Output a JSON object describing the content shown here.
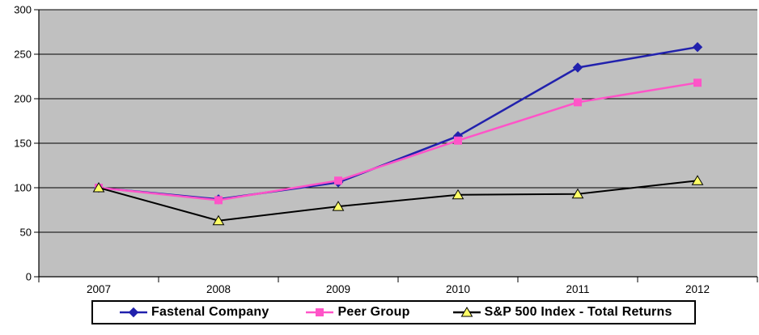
{
  "chart_data": {
    "type": "line",
    "title": "",
    "xlabel": "",
    "ylabel": "",
    "x": [
      "2007",
      "2008",
      "2009",
      "2010",
      "2011",
      "2012"
    ],
    "series": [
      {
        "name": "Fastenal Company",
        "marker": "diamond",
        "color": "#2121AD",
        "marker_fill": "#2121AD",
        "values": [
          100,
          87,
          106,
          158,
          235,
          258
        ]
      },
      {
        "name": "Peer Group",
        "marker": "square",
        "color": "#FF54C8",
        "marker_fill": "#FF54C8",
        "values": [
          100,
          86,
          108,
          153,
          196,
          218
        ]
      },
      {
        "name": "S&P 500 Index - Total Returns",
        "marker": "triangle",
        "color": "#000000",
        "marker_fill": "#FFFF66",
        "values": [
          100,
          63,
          79,
          92,
          93,
          108
        ]
      }
    ],
    "ylim": [
      0,
      300
    ],
    "yticks": [
      0,
      50,
      100,
      150,
      200,
      250,
      300
    ],
    "grid": "horizontal",
    "legend_position": "bottom",
    "colors": {
      "plot_background": "#C0C0C0",
      "page_background": "#FFFFFF",
      "gridline": "#000000",
      "axis": "#000000",
      "tick_label": "#000000",
      "legend_border": "#000000",
      "legend_background": "#FFFFFF"
    }
  }
}
